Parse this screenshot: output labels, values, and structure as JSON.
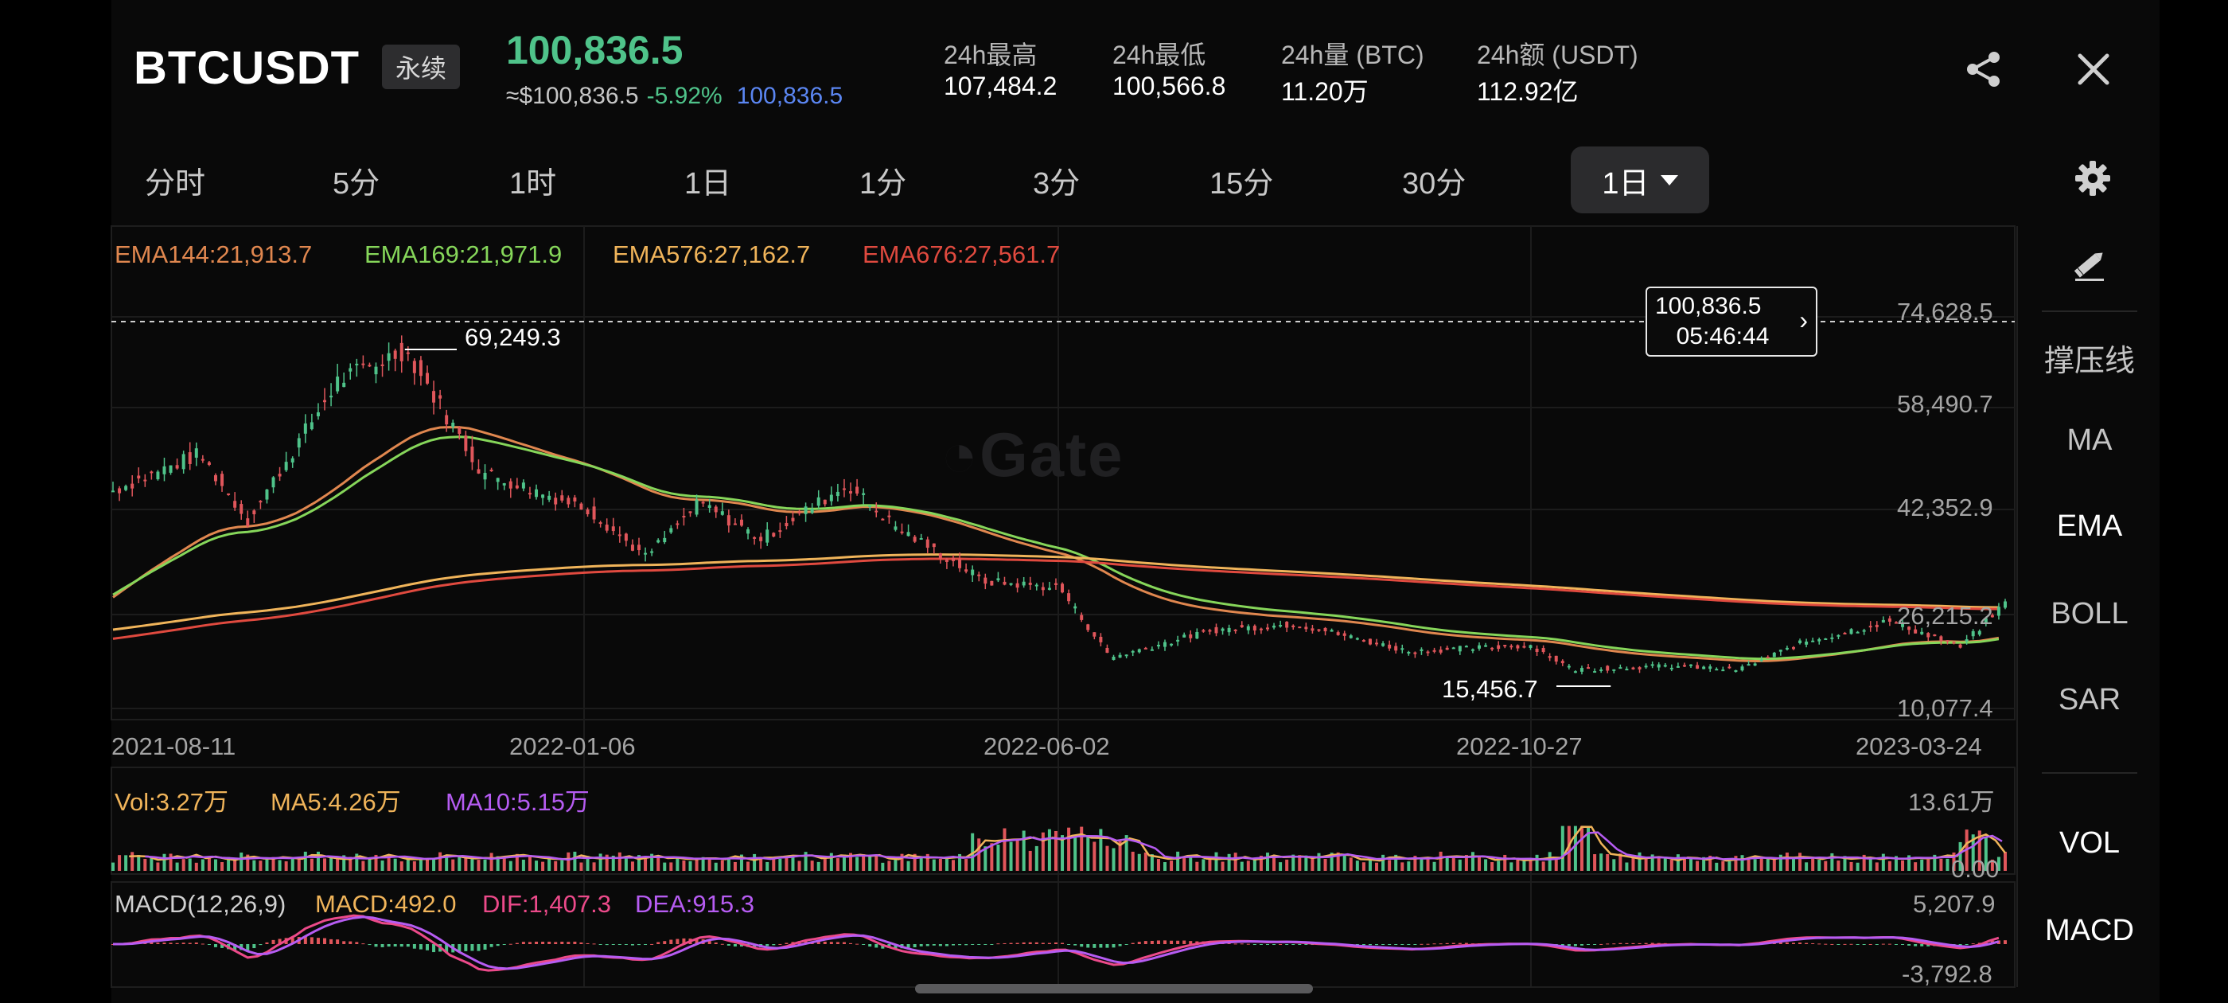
{
  "header": {
    "symbol": "BTCUSDT",
    "contract_type": "永续",
    "last_price": "100,836.5",
    "fiat_price": "≈$100,836.5",
    "change_pct": "-5.92%",
    "mark_price": "100,836.5",
    "stats": [
      {
        "label": "24h最高",
        "value": "107,484.2"
      },
      {
        "label": "24h最低",
        "value": "100,566.8"
      },
      {
        "label": "24h量 (BTC)",
        "value": "11.20万"
      },
      {
        "label": "24h额 (USDT)",
        "value": "112.92亿"
      }
    ],
    "icons": {
      "share": "share-icon",
      "close": "close-icon",
      "settings": "gear-icon"
    }
  },
  "tabs": {
    "items": [
      "分时",
      "5分",
      "1时",
      "1日",
      "1分",
      "3分",
      "15分",
      "30分"
    ],
    "active": "1日"
  },
  "side_toolbar": {
    "draw_icon": "pencil-icon",
    "items": [
      "撑压线",
      "MA",
      "EMA",
      "BOLL",
      "SAR"
    ],
    "bottom_items": [
      "VOL",
      "MACD"
    ],
    "active": "EMA"
  },
  "main_chart": {
    "watermark": "Gate",
    "legend": [
      {
        "text": "EMA144:21,913.7",
        "color": "#e0874f"
      },
      {
        "text": "EMA169:21,971.9",
        "color": "#86d65a"
      },
      {
        "text": "EMA576:27,162.7",
        "color": "#f0b45a"
      },
      {
        "text": "EMA676:27,561.7",
        "color": "#e04a3f"
      }
    ],
    "price_axis": [
      "74,628.5",
      "58,490.7",
      "42,352.9",
      "26,215.2",
      "10,077.4"
    ],
    "date_axis": [
      "2021-08-11",
      "2022-01-06",
      "2022-06-02",
      "2022-10-27",
      "2023-03-24"
    ],
    "high_label": "69,249.3",
    "low_label": "15,456.7",
    "current_price_tag": {
      "price": "100,836.5",
      "countdown": "05:46:44"
    }
  },
  "volume_panel": {
    "legend": [
      {
        "text": "Vol:3.27万",
        "color": "#f0b45a"
      },
      {
        "text": "MA5:4.26万",
        "color": "#f0b45a"
      },
      {
        "text": "MA10:5.15万",
        "color": "#b65cf2"
      }
    ],
    "max_label": "13.61万",
    "min_label": "0.00"
  },
  "macd_panel": {
    "legend": [
      {
        "text": "MACD(12,26,9)",
        "color": "#d0d0d0"
      },
      {
        "text": "MACD:492.0",
        "color": "#f0b45a"
      },
      {
        "text": "DIF:1,407.3",
        "color": "#ec4a8a"
      },
      {
        "text": "DEA:915.3",
        "color": "#b65cf2"
      }
    ],
    "max_label": "5,207.9",
    "min_label": "-3,792.8"
  },
  "colors": {
    "up": "#4fc38a",
    "down": "#e0565b",
    "ema144": "#e0874f",
    "ema169": "#86d65a",
    "ema576": "#f0b45a",
    "ema676": "#e04a3f",
    "dif": "#ec4a8a",
    "dea": "#b65cf2"
  },
  "chart_data": {
    "type": "candlestick",
    "title": "BTCUSDT 1日",
    "x_range": [
      "2021-08-11",
      "2023-03-24"
    ],
    "ylim": [
      10077.4,
      74628.5
    ],
    "log_scale": false,
    "annotated_high": 69249.3,
    "annotated_low": 15456.7,
    "close_path": [
      {
        "date": "2021-08-11",
        "value": 46000
      },
      {
        "date": "2021-09-07",
        "value": 52000
      },
      {
        "date": "2021-09-22",
        "value": 41000
      },
      {
        "date": "2021-10-20",
        "value": 64000
      },
      {
        "date": "2021-11-10",
        "value": 69249.3
      },
      {
        "date": "2021-12-04",
        "value": 49000
      },
      {
        "date": "2022-01-06",
        "value": 43000
      },
      {
        "date": "2022-01-24",
        "value": 35000
      },
      {
        "date": "2022-02-10",
        "value": 44000
      },
      {
        "date": "2022-03-01",
        "value": 38000
      },
      {
        "date": "2022-03-28",
        "value": 47000
      },
      {
        "date": "2022-04-12",
        "value": 40000
      },
      {
        "date": "2022-05-10",
        "value": 31000
      },
      {
        "date": "2022-06-02",
        "value": 30000
      },
      {
        "date": "2022-06-18",
        "value": 18500
      },
      {
        "date": "2022-07-20",
        "value": 23000
      },
      {
        "date": "2022-08-15",
        "value": 24000
      },
      {
        "date": "2022-09-19",
        "value": 19500
      },
      {
        "date": "2022-10-27",
        "value": 20500
      },
      {
        "date": "2022-11-09",
        "value": 16500
      },
      {
        "date": "2022-12-10",
        "value": 17100
      },
      {
        "date": "2022-12-31",
        "value": 16500
      },
      {
        "date": "2023-01-20",
        "value": 21000
      },
      {
        "date": "2023-02-16",
        "value": 24500
      },
      {
        "date": "2023-03-10",
        "value": 20200
      },
      {
        "date": "2023-03-24",
        "value": 27500
      }
    ],
    "series": [
      {
        "name": "EMA144",
        "last_value": 21913.7
      },
      {
        "name": "EMA169",
        "last_value": 21971.9
      },
      {
        "name": "EMA576",
        "last_value": 27162.7
      },
      {
        "name": "EMA676",
        "last_value": 27561.7
      }
    ],
    "current_price": 100836.5,
    "volume": {
      "last": "3.27万",
      "ma5": "4.26万",
      "ma10": "5.15万",
      "ylim": [
        0,
        "13.61万"
      ]
    },
    "macd": {
      "params": "12,26,9",
      "macd": 492.0,
      "dif": 1407.3,
      "dea": 915.3,
      "ylim": [
        -3792.8,
        5207.9
      ]
    }
  }
}
